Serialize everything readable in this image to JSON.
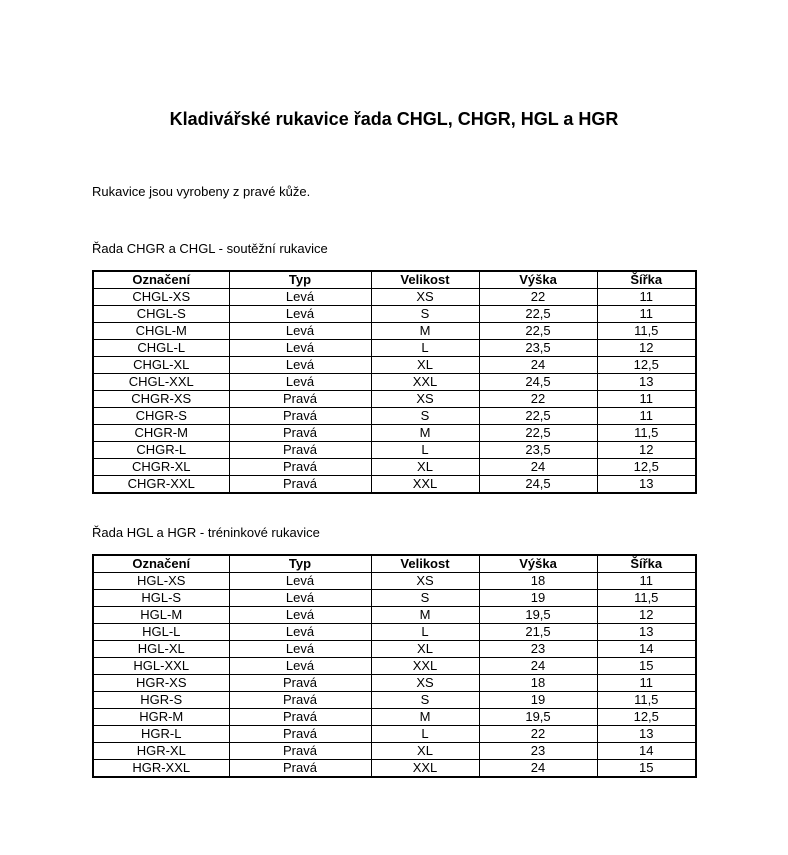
{
  "page": {
    "title": "Kladivářské rukavice řada CHGL, CHGR, HGL a HGR",
    "intro": "Rukavice jsou vyrobeny z pravé kůže.",
    "text_color": "#000000",
    "background_color": "#ffffff"
  },
  "tables": [
    {
      "section_title": "Řada CHGR a CHGL - soutěžní rukavice",
      "columns": [
        "Označení",
        "Typ",
        "Velikost",
        "Výška",
        "Šířka"
      ],
      "rows": [
        [
          "CHGL-XS",
          "Levá",
          "XS",
          "22",
          "11"
        ],
        [
          "CHGL-S",
          "Levá",
          "S",
          "22,5",
          "11"
        ],
        [
          "CHGL-M",
          "Levá",
          "M",
          "22,5",
          "11,5"
        ],
        [
          "CHGL-L",
          "Levá",
          "L",
          "23,5",
          "12"
        ],
        [
          "CHGL-XL",
          "Levá",
          "XL",
          "24",
          "12,5"
        ],
        [
          "CHGL-XXL",
          "Levá",
          "XXL",
          "24,5",
          "13"
        ],
        [
          "CHGR-XS",
          "Pravá",
          "XS",
          "22",
          "11"
        ],
        [
          "CHGR-S",
          "Pravá",
          "S",
          "22,5",
          "11"
        ],
        [
          "CHGR-M",
          "Pravá",
          "M",
          "22,5",
          "11,5"
        ],
        [
          "CHGR-L",
          "Pravá",
          "L",
          "23,5",
          "12"
        ],
        [
          "CHGR-XL",
          "Pravá",
          "XL",
          "24",
          "12,5"
        ],
        [
          "CHGR-XXL",
          "Pravá",
          "XXL",
          "24,5",
          "13"
        ]
      ]
    },
    {
      "section_title": "Řada HGL a HGR - tréninkové rukavice",
      "columns": [
        "Označení",
        "Typ",
        "Velikost",
        "Výška",
        "Šířka"
      ],
      "rows": [
        [
          "HGL-XS",
          "Levá",
          "XS",
          "18",
          "11"
        ],
        [
          "HGL-S",
          "Levá",
          "S",
          "19",
          "11,5"
        ],
        [
          "HGL-M",
          "Levá",
          "M",
          "19,5",
          "12"
        ],
        [
          "HGL-L",
          "Levá",
          "L",
          "21,5",
          "13"
        ],
        [
          "HGL-XL",
          "Levá",
          "XL",
          "23",
          "14"
        ],
        [
          "HGL-XXL",
          "Levá",
          "XXL",
          "24",
          "15"
        ],
        [
          "HGR-XS",
          "Pravá",
          "XS",
          "18",
          "11"
        ],
        [
          "HGR-S",
          "Pravá",
          "S",
          "19",
          "11,5"
        ],
        [
          "HGR-M",
          "Pravá",
          "M",
          "19,5",
          "12,5"
        ],
        [
          "HGR-L",
          "Pravá",
          "L",
          "22",
          "13"
        ],
        [
          "HGR-XL",
          "Pravá",
          "XL",
          "23",
          "14"
        ],
        [
          "HGR-XXL",
          "Pravá",
          "XXL",
          "24",
          "15"
        ]
      ]
    }
  ]
}
